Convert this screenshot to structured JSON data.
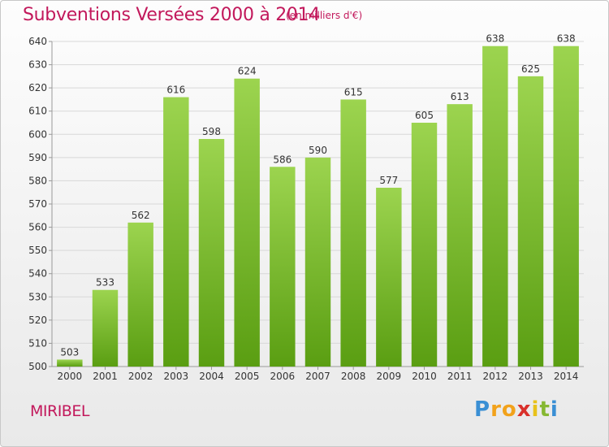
{
  "header": {
    "title": "Subventions Versées 2000 à 2014",
    "subtitle": "(en milliers d'€)"
  },
  "footer": {
    "city": "MIRIBEL",
    "logo": {
      "letters": [
        "P",
        "r",
        "o",
        "x",
        "i",
        "t",
        "i"
      ],
      "colors": [
        "#3a8fd4",
        "#f2a21b",
        "#f2a21b",
        "#d9302b",
        "#e8c21a",
        "#86b832",
        "#3a8fd4"
      ]
    }
  },
  "colors": {
    "bar_top": "#9cd44f",
    "bar_bottom": "#5a9e12",
    "title": "#c2185b",
    "grid": "#d8d8d8"
  },
  "chart_data": {
    "type": "bar",
    "title": "Subventions Versées 2000 à 2014",
    "subtitle": "(en milliers d'€)",
    "categories": [
      "2000",
      "2001",
      "2002",
      "2003",
      "2004",
      "2005",
      "2006",
      "2007",
      "2008",
      "2009",
      "2010",
      "2011",
      "2012",
      "2013",
      "2014"
    ],
    "values": [
      503,
      533,
      562,
      616,
      598,
      624,
      586,
      590,
      615,
      577,
      605,
      613,
      638,
      625,
      638
    ],
    "ylim": [
      500,
      640
    ],
    "yticks": [
      500,
      510,
      520,
      530,
      540,
      550,
      560,
      570,
      580,
      590,
      600,
      610,
      620,
      630,
      640
    ],
    "grid": true,
    "legend": "none"
  }
}
